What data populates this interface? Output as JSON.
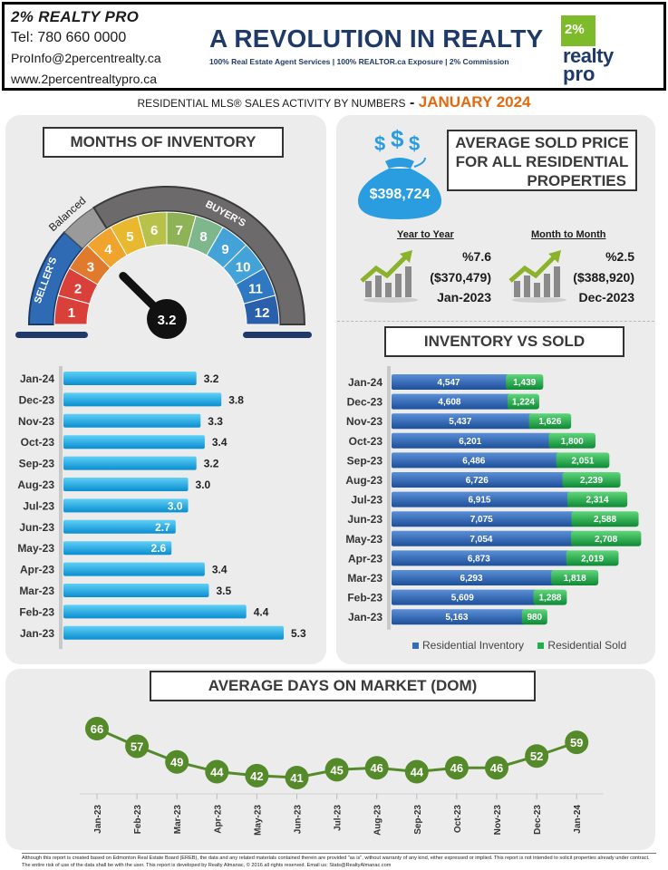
{
  "header": {
    "brand": "2% REALTY PRO",
    "tel": "Tel: 780 660 0000",
    "email": "ProInfo@2percentrealty.ca",
    "website": "www.2percentrealtypro.ca",
    "headline": "A REVOLUTION IN REALTY",
    "tagline": "100% Real Estate Agent Services | 100% REALTOR.ca Exposure | 2% Commission",
    "logo_pct": "2%",
    "logo_realty": "realty",
    "logo_pro": "pro"
  },
  "subtitle": {
    "text": "RESIDENTIAL MLS® SALES ACTIVITY BY NUMBERS",
    "dash": " - ",
    "month": "JANUARY 2024"
  },
  "colors": {
    "navy": "#1f3a68",
    "orange": "#e36a0e",
    "bar_blue": "#1aa7e0",
    "inventory_blue": "#2f6bbf",
    "sold_green": "#1cb14b",
    "dom_green": "#558a2b"
  },
  "months_of_inventory": {
    "title": "MONTHS OF INVENTORY",
    "gauge": {
      "value_label": "3.2",
      "value": 3.2,
      "labels": {
        "sellers": "SELLER'S",
        "balanced": "Balanced",
        "buyers": "BUYER'S"
      },
      "segments": [
        "1",
        "2",
        "3",
        "4",
        "5",
        "6",
        "7",
        "8",
        "9",
        "10",
        "11",
        "12"
      ]
    }
  },
  "average_price": {
    "title_lines": [
      "AVERAGE  SOLD PRICE",
      "FOR ALL RESIDENTIAL",
      "PROPERTIES"
    ],
    "price": "$398,724",
    "bag_icon": "money-bag-icon",
    "year_to_year": {
      "heading": "Year to Year",
      "pct": "%7.6",
      "value": "($370,479)",
      "period": "Jan-2023"
    },
    "month_to_month": {
      "heading": "Month to Month",
      "pct": "%2.5",
      "value": "($388,920)",
      "period": "Dec-2023"
    }
  },
  "inventory_vs_sold": {
    "title": "INVENTORY VS SOLD"
  },
  "dom": {
    "title": "AVERAGE DAYS ON MARKET (DOM)"
  },
  "chart_data": [
    {
      "type": "bar",
      "orientation": "horizontal",
      "title": "MONTHS OF INVENTORY",
      "categories": [
        "Jan-24",
        "Dec-23",
        "Nov-23",
        "Oct-23",
        "Sep-23",
        "Aug-23",
        "Jul-23",
        "Jun-23",
        "May-23",
        "Apr-23",
        "Mar-23",
        "Feb-23",
        "Jan-23"
      ],
      "values": [
        3.2,
        3.8,
        3.3,
        3.4,
        3.2,
        3.0,
        3.0,
        2.7,
        2.6,
        3.4,
        3.5,
        4.4,
        5.3
      ],
      "value_labels": [
        "3.2",
        "3.8",
        "3.3",
        "3.4",
        "3.2",
        "3.0",
        "3.0",
        "2.7",
        "2.6",
        "3.4",
        "3.5",
        "4.4",
        "5.3"
      ],
      "xlim": [
        0,
        5.3
      ]
    },
    {
      "type": "bar",
      "orientation": "horizontal",
      "stacked": true,
      "title": "INVENTORY VS SOLD",
      "categories": [
        "Jan-24",
        "Dec-23",
        "Nov-23",
        "Oct-23",
        "Sep-23",
        "Aug-23",
        "Jul-23",
        "Jun-23",
        "May-23",
        "Apr-23",
        "Mar-23",
        "Feb-23",
        "Jan-23"
      ],
      "series": [
        {
          "name": "Residential Inventory",
          "values": [
            4547,
            4608,
            5437,
            6201,
            6486,
            6726,
            6915,
            7075,
            7054,
            6873,
            6293,
            5609,
            5163
          ],
          "labels": [
            "4,547",
            "4,608",
            "5,437",
            "6,201",
            "6,486",
            "6,726",
            "6,915",
            "7,075",
            "7,054",
            "6,873",
            "6,293",
            "5,609",
            "5,163"
          ]
        },
        {
          "name": "Residential Sold",
          "values": [
            1439,
            1224,
            1626,
            1800,
            2051,
            2239,
            2314,
            2588,
            2708,
            2019,
            1818,
            1288,
            980
          ],
          "labels": [
            "1,439",
            "1,224",
            "1,626",
            "1,800",
            "2,051",
            "2,239",
            "2,314",
            "2,588",
            "2,708",
            "2,019",
            "1,818",
            "1,288",
            "980"
          ]
        }
      ],
      "legend": "bottom"
    },
    {
      "type": "line",
      "title": "AVERAGE DAYS ON MARKET (DOM)",
      "x": [
        "Jan-23",
        "Feb-23",
        "Mar-23",
        "Apr-23",
        "May-23",
        "Jun-23",
        "Jul-23",
        "Aug-23",
        "Sep-23",
        "Oct-23",
        "Nov-23",
        "Dec-23",
        "Jan-24"
      ],
      "values": [
        66,
        57,
        49,
        44,
        42,
        41,
        45,
        46,
        44,
        46,
        46,
        52,
        59
      ],
      "value_labels": [
        "66",
        "57",
        "49",
        "44",
        "42",
        "41",
        "45",
        "46",
        "44",
        "46",
        "46",
        "52",
        "59"
      ]
    }
  ],
  "footer": {
    "disclaimer": "Although this report is created based on Edmonton Real Estate Board (EREB), the data and any related materials contained therein are provided \"as is\", without warranty of any kind, either expressed or implied.  This report is not intended to solicit properties already under contract.  The entire risk of use of the data shall be with the user.  This report is developed by Realty Almanac, © 2016 all rights reserved. Email us: Stats@RealtyAlmanac.com"
  }
}
